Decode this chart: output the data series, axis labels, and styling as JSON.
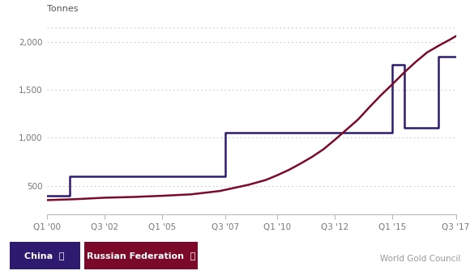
{
  "title_ylabel": "Tonnes",
  "background_color": "#ffffff",
  "plot_bg_color": "#ffffff",
  "china_color": "#2e1a6e",
  "russia_color": "#7b0a2a",
  "grid_color": "#cccccc",
  "ylim": [
    200,
    2150
  ],
  "yticks": [
    500,
    1000,
    1500,
    2000
  ],
  "ytick_labels": [
    "500",
    "1,000",
    "1,500",
    "2,000"
  ],
  "xtick_labels": [
    "Q1 '00",
    "Q3 '02",
    "Q1 '05",
    "Q3 '07",
    "Q1 '10",
    "Q3 '12",
    "Q1 '15",
    "Q3 '17"
  ],
  "xtick_positions": [
    0,
    10,
    20,
    31,
    40,
    50,
    60,
    71
  ],
  "china_x": [
    0,
    4,
    4,
    5,
    5,
    31,
    31,
    60,
    60,
    62,
    62,
    68,
    68,
    71
  ],
  "china_y": [
    395,
    395,
    600,
    600,
    600,
    600,
    1054,
    1054,
    1762,
    1762,
    1100,
    1100,
    1843,
    1843
  ],
  "russia_x": [
    0,
    5,
    10,
    15,
    20,
    25,
    30,
    35,
    38,
    40,
    42,
    44,
    46,
    48,
    50,
    52,
    54,
    56,
    58,
    60,
    62,
    64,
    66,
    68,
    70,
    71
  ],
  "russia_y": [
    350,
    360,
    375,
    383,
    395,
    410,
    445,
    510,
    560,
    610,
    665,
    730,
    800,
    880,
    980,
    1085,
    1190,
    1320,
    1445,
    1560,
    1680,
    1790,
    1890,
    1960,
    2025,
    2060
  ],
  "legend_china_bg": "#2e1a6e",
  "legend_russia_bg": "#7b0a2a",
  "legend_text_color": "#ffffff",
  "source_text": "World Gold Council",
  "source_color": "#999999"
}
